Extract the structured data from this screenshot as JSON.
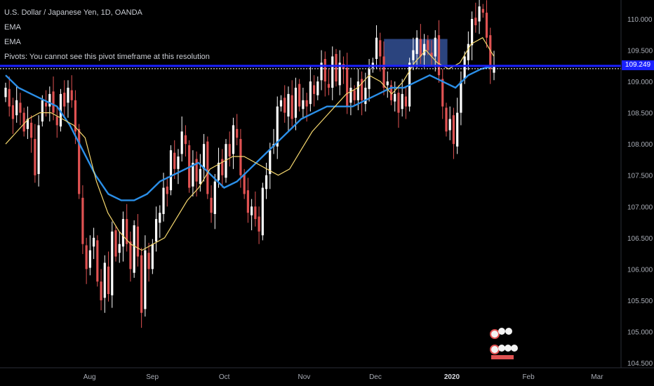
{
  "legend": {
    "symbol": "U.S. Dollar / Japanese Yen, 1D, OANDA",
    "ema1": "EMA",
    "ema2": "EMA",
    "pivots": "Pivots: You cannot see this pivot timeframe at this resolution"
  },
  "price_tag": "109.249",
  "colors": {
    "up": "#ffffff",
    "down": "#e05252",
    "ema_fast": "#f5d76e",
    "ema_slow": "#2b8fe8",
    "level_line": "#1a21ff",
    "box": "#3a5ba8"
  },
  "chart_data": {
    "type": "candlestick",
    "title": "U.S. Dollar / Japanese Yen, 1D, OANDA",
    "ylim": [
      104.5,
      110.3
    ],
    "y_ticks": [
      "110.000",
      "109.500",
      "109.000",
      "108.500",
      "108.000",
      "107.500",
      "107.000",
      "106.500",
      "106.000",
      "105.500",
      "105.000",
      "104.500"
    ],
    "x_ticks": [
      {
        "label": "Aug",
        "x": 0.137
      },
      {
        "label": "Sep",
        "x": 0.233
      },
      {
        "label": "Oct",
        "x": 0.343
      },
      {
        "label": "Nov",
        "x": 0.465
      },
      {
        "label": "Dec",
        "x": 0.574
      },
      {
        "label": "2020",
        "x": 0.691,
        "bold": true
      },
      {
        "label": "Feb",
        "x": 0.808
      },
      {
        "label": "Mar",
        "x": 0.913
      }
    ],
    "horizontal_level": 109.25,
    "last_price": 109.249,
    "highlight_box": {
      "x_from": 0.6,
      "x_to": 0.699,
      "y_from": 109.25,
      "y_to": 109.68
    },
    "closes": [
      108.9,
      108.6,
      108.4,
      108.7,
      108.5,
      108.2,
      108.4,
      108.1,
      107.5,
      108.3,
      108.7,
      108.6,
      108.8,
      108.5,
      108.3,
      108.8,
      108.6,
      108.9,
      108.7,
      108.2,
      107.2,
      106.4,
      106.0,
      106.3,
      106.5,
      105.8,
      105.5,
      106.1,
      105.6,
      106.6,
      106.2,
      106.4,
      106.8,
      106.4,
      106.0,
      106.7,
      106.2,
      105.3,
      106.3,
      106.0,
      106.4,
      106.8,
      106.9,
      107.3,
      107.2,
      107.9,
      107.6,
      107.8,
      108.2,
      108.0,
      107.3,
      107.7,
      107.4,
      107.6,
      108.0,
      107.2,
      106.9,
      107.4,
      107.7,
      107.5,
      108.0,
      107.8,
      108.3,
      108.1,
      107.5,
      107.2,
      106.9,
      107.0,
      106.8,
      106.6,
      107.3,
      107.5,
      107.9,
      108.0,
      108.6,
      108.7,
      108.5,
      108.8,
      108.4,
      108.9,
      108.6,
      108.7,
      108.6,
      109.0,
      108.8,
      109.0,
      109.3,
      109.0,
      108.9,
      109.4,
      109.0,
      109.3,
      109.2,
      108.6,
      108.9,
      108.7,
      109.0,
      108.7,
      108.9,
      109.2,
      109.3,
      109.7,
      109.4,
      108.9,
      109.0,
      108.7,
      108.8,
      108.5,
      108.8,
      108.6,
      109.3,
      109.5,
      109.7,
      109.4,
      109.6,
      109.5,
      109.4,
      109.7,
      109.1,
      108.6,
      108.2,
      108.4,
      108.0,
      108.5,
      109.0,
      109.4,
      109.6,
      110.0,
      109.9,
      110.2,
      110.1,
      109.7,
      109.2,
      109.25
    ],
    "ema_fast": [
      108.0,
      108.2,
      108.4,
      108.5,
      108.5,
      108.4,
      108.3,
      108.1,
      107.4,
      106.9,
      106.6,
      106.4,
      106.3,
      106.4,
      106.5,
      106.8,
      107.1,
      107.3,
      107.6,
      107.7,
      107.8,
      107.8,
      107.7,
      107.6,
      107.5,
      107.6,
      107.9,
      108.2,
      108.4,
      108.6,
      108.8,
      108.9,
      109.1,
      109.0,
      108.8,
      109.0,
      109.3,
      109.5,
      109.3,
      109.2,
      109.3,
      109.6,
      109.7,
      109.4
    ],
    "ema_slow": [
      109.1,
      108.9,
      108.8,
      108.7,
      108.6,
      108.3,
      107.9,
      107.5,
      107.2,
      107.1,
      107.1,
      107.2,
      107.4,
      107.5,
      107.6,
      107.7,
      107.5,
      107.3,
      107.4,
      107.6,
      107.8,
      108.0,
      108.2,
      108.4,
      108.5,
      108.6,
      108.6,
      108.6,
      108.7,
      108.8,
      108.9,
      108.9,
      109.0,
      109.1,
      109.0,
      108.9,
      109.1,
      109.2,
      109.25
    ]
  }
}
